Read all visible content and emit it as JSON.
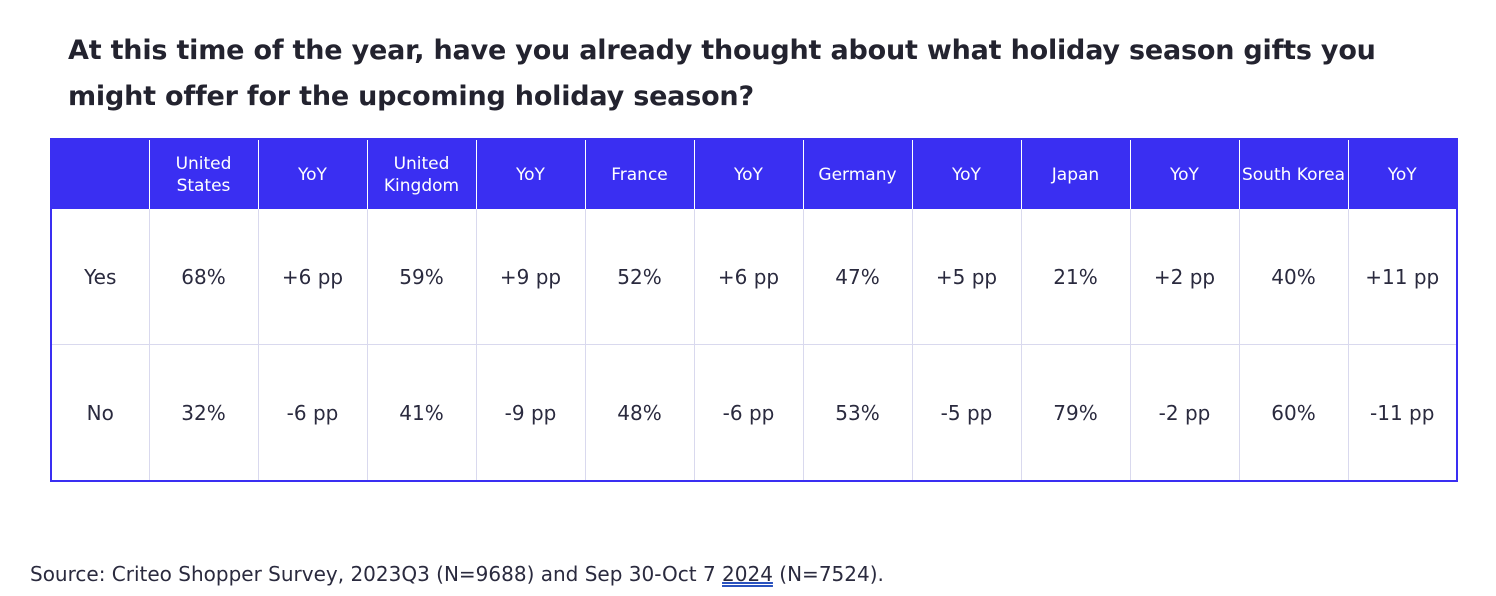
{
  "title": "At this time of the year, have you already thought about what holiday season gifts you might offer for the upcoming holiday season?",
  "table": {
    "headers": [
      "",
      "United States",
      "YoY",
      "United Kingdom",
      "YoY",
      "France",
      "YoY",
      "Germany",
      "YoY",
      "Japan",
      "YoY",
      "South Korea",
      "YoY"
    ],
    "rows": [
      [
        "Yes",
        "68%",
        "+6 pp",
        "59%",
        "+9 pp",
        "52%",
        "+6 pp",
        "47%",
        "+5 pp",
        "21%",
        "+2 pp",
        "40%",
        "+11 pp"
      ],
      [
        "No",
        "32%",
        "-6 pp",
        "41%",
        "-9 pp",
        "48%",
        "-6 pp",
        "53%",
        "-5 pp",
        "79%",
        "-2 pp",
        "60%",
        "-11 pp"
      ]
    ]
  },
  "source": {
    "before": "Source: Criteo Shopper Survey, 2023Q3 (N=9688) and Sep 30-Oct 7 ",
    "year": "2024",
    "after": " (N=7524)."
  },
  "colors": {
    "header_bg": "#3a2ff2",
    "header_text": "#ffffff",
    "grid_line": "#d9d9ee",
    "text": "#2a2a3e"
  }
}
